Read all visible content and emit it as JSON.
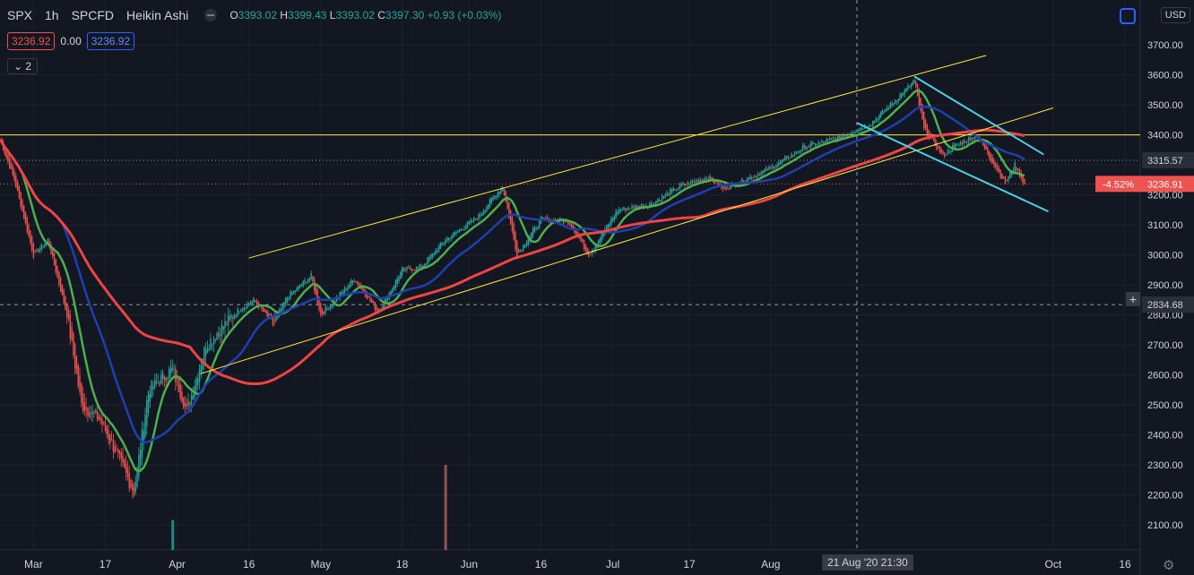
{
  "header": {
    "symbol": "SPX",
    "interval": "1h",
    "exchange": "SPCFD",
    "chart_style": "Heikin Ashi",
    "open_label": "O",
    "open": "3393.02",
    "high_label": "H",
    "high": "3399.43",
    "low_label": "L",
    "low": "3393.02",
    "close_label": "C",
    "close": "3397.30",
    "change": "+0.93 (+0.03%)"
  },
  "indicator_row": {
    "bid": "3236.92",
    "spread": "0.00",
    "ask": "3236.92"
  },
  "collapse_button": {
    "label": "2"
  },
  "currency_label": "USD",
  "crosshair_time_label": "21 Aug '20   21:30",
  "colors": {
    "background": "#131722",
    "up": "#26a69a",
    "down": "#ef5350",
    "ma_green": "#4caf50",
    "ma_blue": "#1e40af",
    "ma_red": "#ef4444",
    "trendline_yellow": "#ffeb3b",
    "trendline_cyan": "#4dd0e1"
  },
  "chart_data": {
    "type": "line",
    "y_axis": {
      "min": 2050,
      "max": 3790,
      "ticks": [
        3700,
        3600,
        3500,
        3400,
        3300,
        3200,
        3100,
        3000,
        2900,
        2800,
        2700,
        2600,
        2500,
        2400,
        2300,
        2200,
        2100
      ],
      "tick_labels": [
        "3700.00",
        "3600.00",
        "3500.00",
        "3400.00",
        "3300.00",
        "3200.00",
        "3100.00",
        "3000.00",
        "2900.00",
        "2800.00",
        "2700.00",
        "2600.00",
        "2500.00",
        "2400.00",
        "2300.00",
        "2200.00",
        "2100.00"
      ]
    },
    "x_axis": {
      "ticks": [
        {
          "label": "Mar",
          "date": "2020-03-02"
        },
        {
          "label": "17",
          "date": "2020-03-17"
        },
        {
          "label": "Apr",
          "date": "2020-04-01"
        },
        {
          "label": "16",
          "date": "2020-04-16"
        },
        {
          "label": "May",
          "date": "2020-05-01"
        },
        {
          "label": "18",
          "date": "2020-05-18"
        },
        {
          "label": "Jun",
          "date": "2020-06-01"
        },
        {
          "label": "16",
          "date": "2020-06-16"
        },
        {
          "label": "Jul",
          "date": "2020-07-01"
        },
        {
          "label": "17",
          "date": "2020-07-17"
        },
        {
          "label": "Aug",
          "date": "2020-08-03"
        },
        {
          "label": "Oct",
          "date": "2020-10-01"
        },
        {
          "label": "16",
          "date": "2020-10-16"
        }
      ]
    },
    "price_anchors": [
      [
        "2020-02-24",
        3385
      ],
      [
        "2020-02-27",
        3250
      ],
      [
        "2020-03-02",
        3000
      ],
      [
        "2020-03-05",
        3050
      ],
      [
        "2020-03-09",
        2800
      ],
      [
        "2020-03-12",
        2500
      ],
      [
        "2020-03-16",
        2450
      ],
      [
        "2020-03-19",
        2350
      ],
      [
        "2020-03-23",
        2210
      ],
      [
        "2020-03-26",
        2550
      ],
      [
        "2020-03-31",
        2620
      ],
      [
        "2020-04-03",
        2480
      ],
      [
        "2020-04-07",
        2700
      ],
      [
        "2020-04-14",
        2820
      ],
      [
        "2020-04-17",
        2850
      ],
      [
        "2020-04-21",
        2770
      ],
      [
        "2020-04-24",
        2860
      ],
      [
        "2020-04-29",
        2930
      ],
      [
        "2020-05-01",
        2800
      ],
      [
        "2020-05-08",
        2920
      ],
      [
        "2020-05-13",
        2810
      ],
      [
        "2020-05-18",
        2950
      ],
      [
        "2020-05-22",
        2960
      ],
      [
        "2020-05-27",
        3050
      ],
      [
        "2020-06-03",
        3130
      ],
      [
        "2020-06-08",
        3230
      ],
      [
        "2020-06-11",
        3000
      ],
      [
        "2020-06-16",
        3120
      ],
      [
        "2020-06-22",
        3110
      ],
      [
        "2020-06-26",
        3000
      ],
      [
        "2020-07-02",
        3150
      ],
      [
        "2020-07-09",
        3170
      ],
      [
        "2020-07-15",
        3230
      ],
      [
        "2020-07-21",
        3260
      ],
      [
        "2020-07-24",
        3220
      ],
      [
        "2020-08-03",
        3290
      ],
      [
        "2020-08-10",
        3360
      ],
      [
        "2020-08-17",
        3390
      ],
      [
        "2020-08-24",
        3440
      ],
      [
        "2020-08-28",
        3500
      ],
      [
        "2020-09-02",
        3580
      ],
      [
        "2020-09-04",
        3420
      ],
      [
        "2020-09-08",
        3330
      ],
      [
        "2020-09-10",
        3360
      ],
      [
        "2020-09-15",
        3400
      ],
      [
        "2020-09-18",
        3320
      ],
      [
        "2020-09-21",
        3240
      ],
      [
        "2020-09-23",
        3300
      ],
      [
        "2020-09-25",
        3236.91
      ]
    ],
    "volume_spikes": [
      {
        "date": "2020-03-31",
        "value": 0.35
      },
      {
        "date": "2020-05-27",
        "value": 1.0
      }
    ],
    "horizontal_lines": [
      {
        "price": 3400,
        "color": "#ffeb3b",
        "style": "solid"
      },
      {
        "price": 3315.57,
        "color": "#9598a1",
        "style": "dotted"
      },
      {
        "price": 2834.68,
        "color": "#9598a1",
        "style": "dashed"
      },
      {
        "price": 3236.91,
        "color": "#ef5350",
        "style": "dotted"
      }
    ],
    "trend_lines": [
      {
        "color": "#ffeb3b",
        "from": [
          "2020-04-16",
          2990
        ],
        "to": [
          "2020-09-17",
          3665
        ]
      },
      {
        "color": "#ffeb3b",
        "from": [
          "2020-04-06",
          2605
        ],
        "to": [
          "2020-10-01",
          3490
        ]
      },
      {
        "color": "#4dd0e1",
        "from": [
          "2020-09-02",
          3595
        ],
        "to": [
          "2020-09-29",
          3335
        ]
      },
      {
        "color": "#4dd0e1",
        "from": [
          "2020-08-21",
          3440
        ],
        "to": [
          "2020-09-30",
          3145
        ]
      }
    ],
    "crosshair_date": "2020-08-21",
    "price_labels": [
      {
        "text": "3315.57",
        "price": 3315.57,
        "bg": "#2a2e39",
        "fg": "#d1d4dc"
      },
      {
        "text": "2834.68",
        "price": 2834.68,
        "bg": "#2a2e39",
        "fg": "#d1d4dc"
      },
      {
        "text": "3236.91",
        "price": 3236.91,
        "bg": "#ef5350",
        "fg": "#ffffff",
        "badge": "-4.52%"
      }
    ],
    "series": [
      {
        "name": "",
        "kind": "ma",
        "period": 20,
        "color": "#4caf50"
      },
      {
        "name": "",
        "kind": "ma",
        "period": 50,
        "color": "#1e40af"
      },
      {
        "name": "",
        "kind": "ma",
        "period": 200,
        "color": "#ef4444"
      }
    ]
  }
}
